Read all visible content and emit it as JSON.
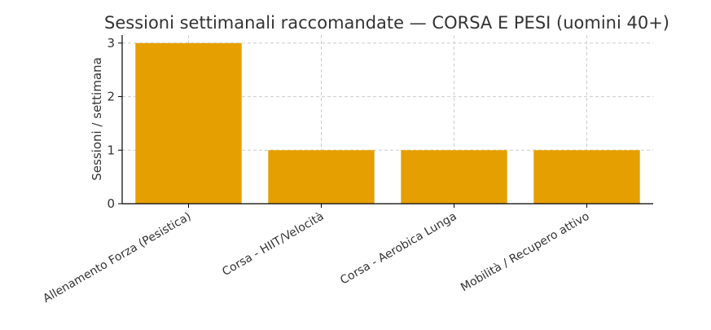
{
  "chart_data": {
    "type": "bar",
    "title": "Sessioni settimanali raccomandate — CORSA E PESI (uomini 40+)",
    "xlabel": "",
    "ylabel": "Sessioni / settimana",
    "categories": [
      "Allenamento Forza (Pesistica)",
      "Corsa - HIIT/Velocità",
      "Corsa - Aerobica Lunga",
      "Mobilità / Recupero attivo"
    ],
    "values": [
      3,
      1,
      1,
      1
    ],
    "ylim": [
      0,
      3.15
    ],
    "yticks": [
      0,
      1,
      2,
      3
    ],
    "grid": true,
    "bar_color": "#E69F00"
  }
}
